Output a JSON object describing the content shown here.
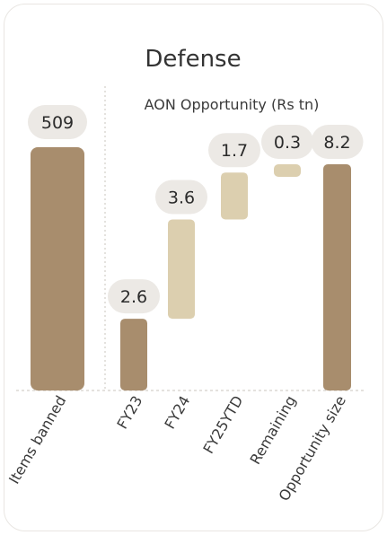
{
  "chart_data": {
    "type": "bar",
    "title": "Defense",
    "panels": [
      {
        "name": "Items banned",
        "categories": [
          "Items banned"
        ],
        "values": [
          509
        ],
        "value_labels": [
          "509"
        ]
      },
      {
        "name": "AON Opportunity (Rs tn)",
        "subtitle": "AON Opportunity (Rs tn)",
        "type": "waterfall",
        "categories": [
          "FY23",
          "FY24",
          "FY25YTD",
          "Remaining",
          "Opportunity size"
        ],
        "values": [
          2.6,
          3.6,
          1.7,
          0.3,
          8.2
        ],
        "value_labels": [
          "2.6",
          "3.6",
          "1.7",
          "0.3",
          "8.2"
        ],
        "bar_kind": [
          "total",
          "increment",
          "increment",
          "increment",
          "total"
        ],
        "ylim": [
          0,
          8.2
        ]
      }
    ],
    "grid": false,
    "legend": "none",
    "colors": {
      "total": "#a88d6d",
      "increment": "#dccfaf",
      "label_bubble": "#ece9e5",
      "baseline": "#c9c4bd"
    }
  }
}
